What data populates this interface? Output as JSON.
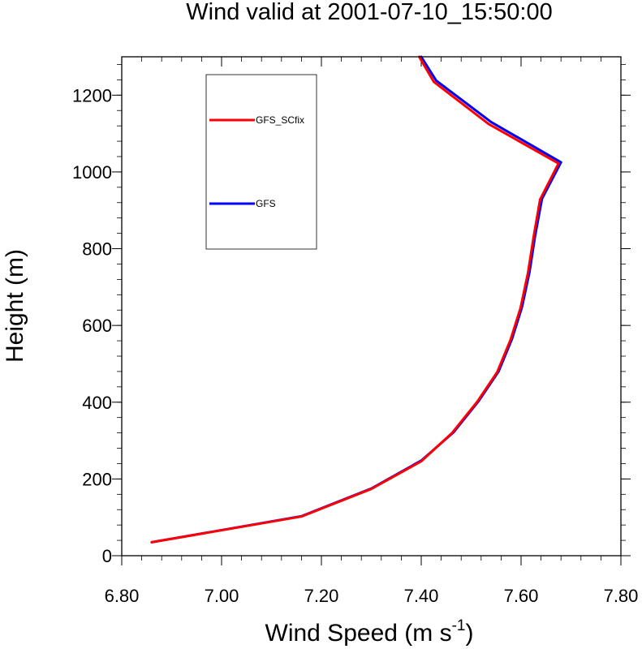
{
  "chart_data": {
    "type": "line",
    "title": "Wind valid at 2001-07-10_15:50:00",
    "xlabel": "Wind Speed (m s",
    "xlabel_sup": "-1",
    "xlabel_close": ")",
    "ylabel": "Height (m)",
    "xlim": [
      6.8,
      7.8
    ],
    "ylim": [
      0,
      1300
    ],
    "x_ticks": [
      6.8,
      7.0,
      7.2,
      7.4,
      7.6,
      7.8
    ],
    "x_tick_labels": [
      "6.80",
      "7.00",
      "7.20",
      "7.40",
      "7.60",
      "7.80"
    ],
    "y_ticks": [
      0,
      200,
      400,
      600,
      800,
      1000,
      1200
    ],
    "y_tick_labels": [
      "0",
      "200",
      "400",
      "600",
      "800",
      "1000",
      "1200"
    ],
    "grid": false,
    "legend_position": "top-left",
    "series": [
      {
        "name": "GFS",
        "color": "#0000ff",
        "points": [
          [
            6.86,
            35
          ],
          [
            7.16,
            103
          ],
          [
            7.3,
            175
          ],
          [
            7.4,
            248
          ],
          [
            7.465,
            322
          ],
          [
            7.515,
            403
          ],
          [
            7.555,
            480
          ],
          [
            7.582,
            565
          ],
          [
            7.602,
            648
          ],
          [
            7.617,
            740
          ],
          [
            7.628,
            832
          ],
          [
            7.642,
            930
          ],
          [
            7.68,
            1025
          ],
          [
            7.54,
            1130
          ],
          [
            7.43,
            1238
          ],
          [
            7.4,
            1300
          ]
        ]
      },
      {
        "name": "GFS_SCfix",
        "color": "#ff0000",
        "points": [
          [
            6.86,
            35
          ],
          [
            7.16,
            102
          ],
          [
            7.3,
            174
          ],
          [
            7.4,
            246
          ],
          [
            7.462,
            320
          ],
          [
            7.512,
            401
          ],
          [
            7.552,
            478
          ],
          [
            7.579,
            563
          ],
          [
            7.599,
            646
          ],
          [
            7.614,
            738
          ],
          [
            7.625,
            830
          ],
          [
            7.638,
            928
          ],
          [
            7.675,
            1022
          ],
          [
            7.535,
            1125
          ],
          [
            7.425,
            1235
          ],
          [
            7.396,
            1300
          ]
        ]
      }
    ]
  }
}
